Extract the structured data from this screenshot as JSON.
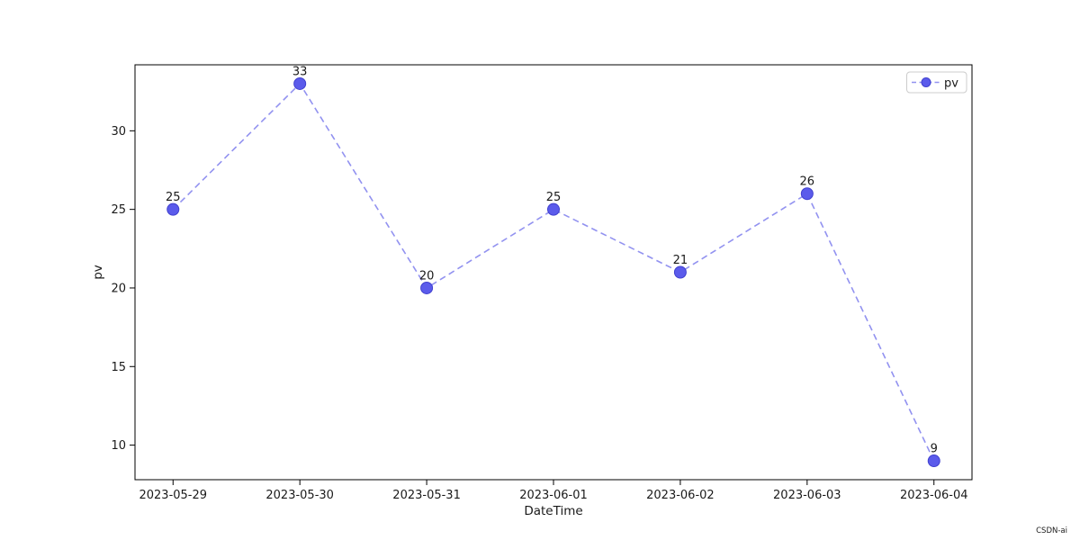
{
  "figure": {
    "watermark": "CSDN-ai"
  },
  "chart_data": {
    "type": "line",
    "title": "",
    "xlabel": "DateTime",
    "ylabel": "pv",
    "categories": [
      "2023-05-29",
      "2023-05-30",
      "2023-05-31",
      "2023-06-01",
      "2023-06-02",
      "2023-06-03",
      "2023-06-04"
    ],
    "series": [
      {
        "name": "pv",
        "values": [
          25,
          33,
          20,
          25,
          21,
          26,
          9
        ],
        "line_style": "dashed",
        "marker": "circle"
      }
    ],
    "point_labels": [
      "25",
      "33",
      "20",
      "25",
      "21",
      "26",
      "9"
    ],
    "yticks": [
      10,
      15,
      20,
      25,
      30
    ],
    "ylim": [
      7.8,
      34.2
    ],
    "xlim_index": [
      -0.3,
      6.3
    ],
    "grid": false,
    "legend": {
      "position": "upper right",
      "entries": [
        {
          "label": "pv"
        }
      ]
    },
    "colors": {
      "line": "#9292f0",
      "marker_fill": "#5b5beb",
      "marker_edge": "#4040cf",
      "point_label": "#ff0000",
      "axis": "#000000",
      "tick_text": "#1a1a1a",
      "legend_border": "#cccccc",
      "watermark": "#c9c9d1"
    }
  }
}
